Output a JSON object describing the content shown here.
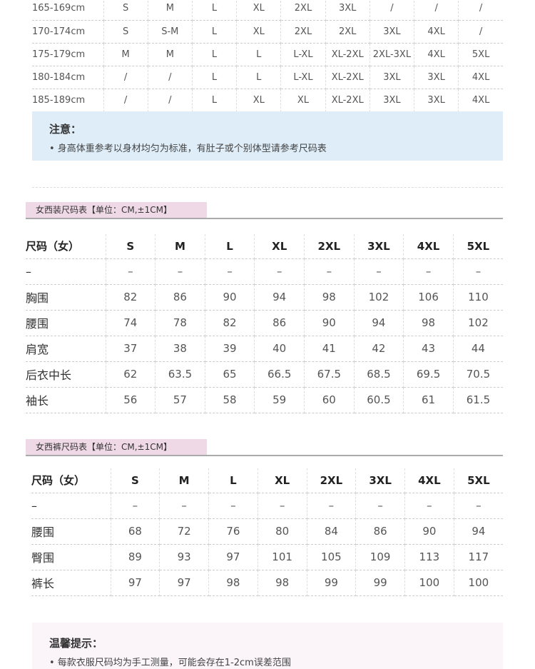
{
  "height_table": {
    "rows": [
      [
        "165-169cm",
        "S",
        "M",
        "L",
        "XL",
        "2XL",
        "3XL",
        "/",
        "/",
        "/"
      ],
      [
        "170-174cm",
        "S",
        "S-M",
        "L",
        "XL",
        "2XL",
        "2XL",
        "3XL",
        "4XL",
        "/"
      ],
      [
        "175-179cm",
        "M",
        "M",
        "L",
        "L",
        "L-XL",
        "XL-2XL",
        "2XL-3XL",
        "4XL",
        "5XL"
      ],
      [
        "180-184cm",
        "/",
        "/",
        "L",
        "L",
        "L-XL",
        "XL-2XL",
        "3XL",
        "3XL",
        "4XL"
      ],
      [
        "185-189cm",
        "/",
        "/",
        "L",
        "XL",
        "XL",
        "XL-2XL",
        "3XL",
        "3XL",
        "4XL"
      ]
    ]
  },
  "notice": {
    "title": "注意：",
    "text": "• 身高体重参考以身材均匀为标准，有肚子或个别体型请参考尺码表"
  },
  "jacket": {
    "title": "女西装尺码表【单位：CM,±1CM】",
    "rows": [
      [
        "尺码（女）",
        "S",
        "M",
        "L",
        "XL",
        "2XL",
        "3XL",
        "4XL",
        "5XL"
      ],
      [
        "–",
        "–",
        "–",
        "–",
        "–",
        "–",
        "–",
        "–",
        "–"
      ],
      [
        "胸围",
        "82",
        "86",
        "90",
        "94",
        "98",
        "102",
        "106",
        "110"
      ],
      [
        "腰围",
        "74",
        "78",
        "82",
        "86",
        "90",
        "94",
        "98",
        "102"
      ],
      [
        "肩宽",
        "37",
        "38",
        "39",
        "40",
        "41",
        "42",
        "43",
        "44"
      ],
      [
        "后衣中长",
        "62",
        "63.5",
        "65",
        "66.5",
        "67.5",
        "68.5",
        "69.5",
        "70.5"
      ],
      [
        "袖长",
        "56",
        "57",
        "58",
        "59",
        "60",
        "60.5",
        "61",
        "61.5"
      ]
    ]
  },
  "pants": {
    "title": "女西裤尺码表【单位：CM,±1CM】",
    "rows": [
      [
        "尺码（女）",
        "S",
        "M",
        "L",
        "XL",
        "2XL",
        "3XL",
        "4XL",
        "5XL"
      ],
      [
        "–",
        "–",
        "–",
        "–",
        "–",
        "–",
        "–",
        "–",
        "–"
      ],
      [
        "腰围",
        "68",
        "72",
        "76",
        "80",
        "84",
        "86",
        "90",
        "94"
      ],
      [
        "臀围",
        "89",
        "93",
        "97",
        "101",
        "105",
        "109",
        "113",
        "117"
      ],
      [
        "裤长",
        "97",
        "97",
        "98",
        "98",
        "99",
        "99",
        "100",
        "100"
      ]
    ]
  },
  "tip": {
    "title": "温馨提示：",
    "text": "• 每款衣服尺码均为手工测量，可能会存在1-2cm误差范围"
  }
}
